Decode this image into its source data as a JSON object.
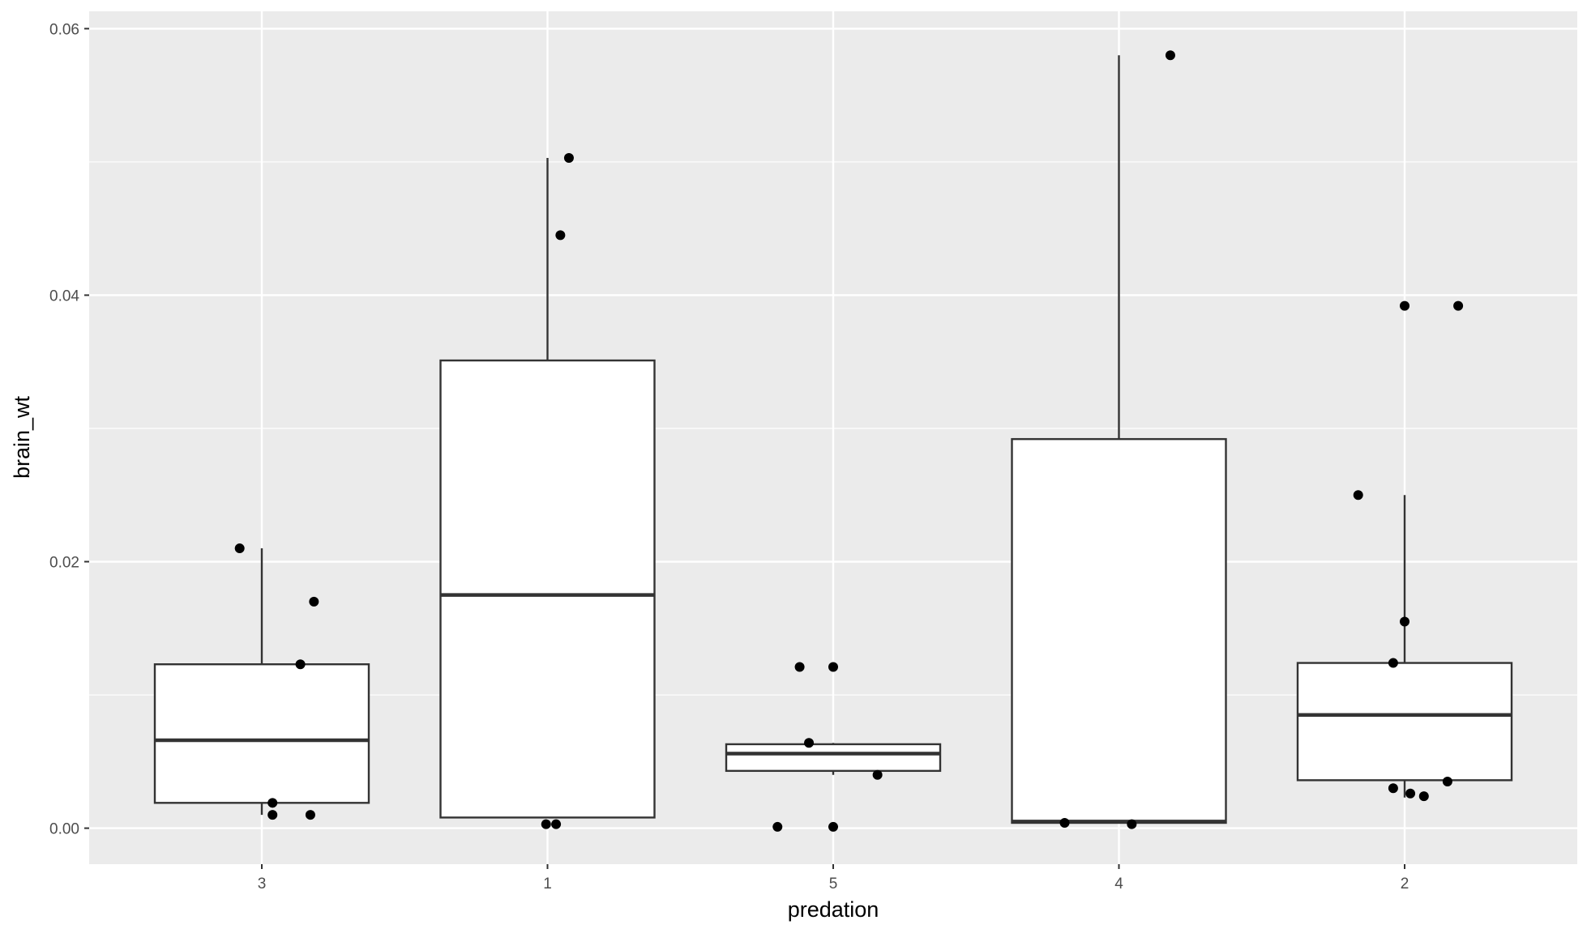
{
  "chart_data": {
    "type": "box",
    "xlabel": "predation",
    "ylabel": "brain_wt",
    "categories": [
      "3",
      "1",
      "5",
      "4",
      "2"
    ],
    "ylim": [
      -0.0027,
      0.0613
    ],
    "yticks": [
      0.0,
      0.02,
      0.04,
      0.06
    ],
    "ytick_labels": [
      "0.00",
      "0.02",
      "0.04",
      "0.06"
    ],
    "grid": true,
    "legend": "none",
    "colors": {
      "panel": "#ebebeb",
      "grid": "#ffffff",
      "box_fill": "#ffffff",
      "box_line": "#333333",
      "point": "#000000",
      "tick_text": "#4d4d4d"
    },
    "boxes": [
      {
        "category": "3",
        "min": 0.001,
        "q1": 0.0019,
        "median": 0.0066,
        "q3": 0.0123,
        "max": 0.021
      },
      {
        "category": "1",
        "min": 0.0008,
        "q1": 0.0008,
        "median": 0.0175,
        "q3": 0.0351,
        "max": 0.0503
      },
      {
        "category": "5",
        "min": 0.004,
        "q1": 0.0043,
        "median": 0.0056,
        "q3": 0.0063,
        "max": 0.0064
      },
      {
        "category": "4",
        "min": 0.0004,
        "q1": 0.0004,
        "median": 0.0005,
        "q3": 0.0292,
        "max": 0.058
      },
      {
        "category": "2",
        "min": 0.0023,
        "q1": 0.0036,
        "median": 0.0085,
        "q3": 0.0124,
        "max": 0.025
      }
    ],
    "points": [
      {
        "category": "3",
        "jitter": -0.155,
        "y": 0.021
      },
      {
        "category": "3",
        "jitter": 0.365,
        "y": 0.017
      },
      {
        "category": "3",
        "jitter": 0.27,
        "y": 0.0123
      },
      {
        "category": "3",
        "jitter": 0.075,
        "y": 0.001
      },
      {
        "category": "3",
        "jitter": 0.34,
        "y": 0.001
      },
      {
        "category": "3",
        "jitter": 0.075,
        "y": 0.0019
      },
      {
        "category": "1",
        "jitter": 0.15,
        "y": 0.0503
      },
      {
        "category": "1",
        "jitter": 0.09,
        "y": 0.0445
      },
      {
        "category": "1",
        "jitter": -0.01,
        "y": 0.0003
      },
      {
        "category": "1",
        "jitter": 0.06,
        "y": 0.0003
      },
      {
        "category": "5",
        "jitter": -0.235,
        "y": 0.0121
      },
      {
        "category": "5",
        "jitter": 0.0,
        "y": 0.0121
      },
      {
        "category": "5",
        "jitter": -0.17,
        "y": 0.0064
      },
      {
        "category": "5",
        "jitter": 0.31,
        "y": 0.004
      },
      {
        "category": "5",
        "jitter": -0.39,
        "y": 0.0001
      },
      {
        "category": "5",
        "jitter": 0.0,
        "y": 0.0001
      },
      {
        "category": "4",
        "jitter": 0.36,
        "y": 0.058
      },
      {
        "category": "4",
        "jitter": -0.38,
        "y": 0.0004
      },
      {
        "category": "4",
        "jitter": 0.09,
        "y": 0.0003
      },
      {
        "category": "2",
        "jitter": 0.0,
        "y": 0.0392
      },
      {
        "category": "2",
        "jitter": 0.375,
        "y": 0.0392
      },
      {
        "category": "2",
        "jitter": -0.325,
        "y": 0.025
      },
      {
        "category": "2",
        "jitter": 0.0,
        "y": 0.0155
      },
      {
        "category": "2",
        "jitter": -0.08,
        "y": 0.0124
      },
      {
        "category": "2",
        "jitter": -0.08,
        "y": 0.003
      },
      {
        "category": "2",
        "jitter": 0.04,
        "y": 0.0026
      },
      {
        "category": "2",
        "jitter": 0.135,
        "y": 0.0024
      },
      {
        "category": "2",
        "jitter": 0.3,
        "y": 0.0035
      }
    ]
  }
}
